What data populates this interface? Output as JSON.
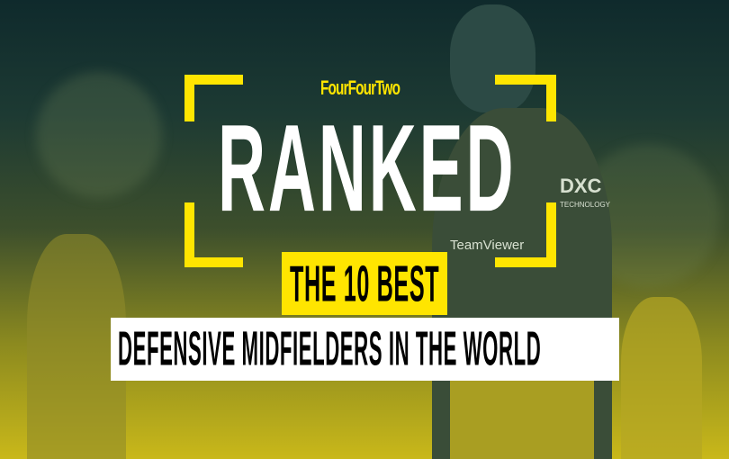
{
  "brand": {
    "logo_text": "FourFourTwo"
  },
  "headline": {
    "title": "RANKED",
    "subtitle": "THE 10 BEST",
    "tagline": "DEFENSIVE MIDFIELDERS IN THE WORLD"
  },
  "shirt_sponsors": {
    "main": "TeamViewer",
    "sleeve": "DXC",
    "sleeve_small": "TECHNOLOGY"
  },
  "colors": {
    "accent": "#ffe500",
    "text_dark": "#000000",
    "text_light": "#ffffff"
  }
}
